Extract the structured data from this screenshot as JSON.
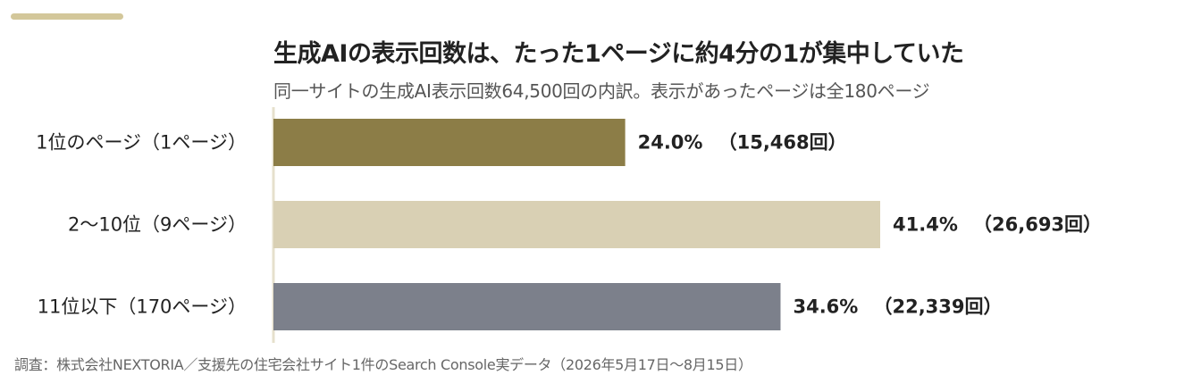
{
  "header": {
    "title": "生成AIの表示回数は、たった1ページに約4分の1が集中していた",
    "subtitle": "同一サイトの生成AI表示回数64,500回の内訳。表示があったページは全180ページ"
  },
  "chart_data": {
    "type": "bar",
    "orientation": "horizontal",
    "categories": [
      "1位のページ（1ページ）",
      "2〜10位（9ページ）",
      "11位以下（170ページ）"
    ],
    "values": [
      24.0,
      41.4,
      34.6
    ],
    "value_labels": [
      "24.0%",
      "41.4%",
      "34.6%"
    ],
    "count_labels": [
      "（15,468回）",
      "（26,693回）",
      "（22,339回）"
    ],
    "colors": [
      "#8c7d47",
      "#d9d0b4",
      "#7c808b"
    ],
    "xlim": [
      0,
      41.4
    ],
    "grid": false,
    "legend": "none"
  },
  "footer": {
    "source": "調査：株式会社NEXTORIA／支援先の住宅会社サイト1件のSearch Console実データ（2026年5月17日〜8月15日）"
  },
  "colors": {
    "accent": "#d3c79a",
    "axis": "#e6e0cc"
  }
}
